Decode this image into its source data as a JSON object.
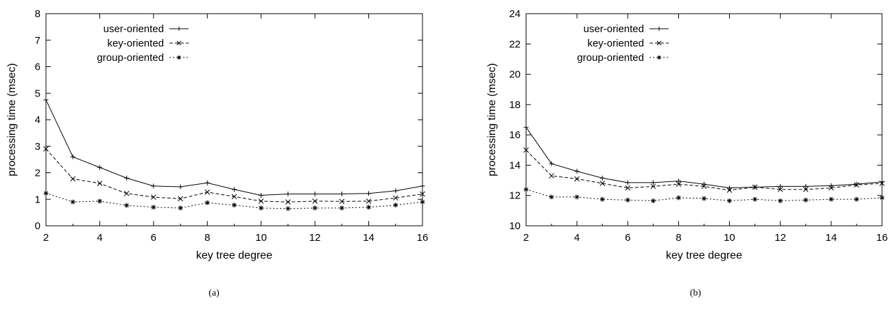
{
  "chart_data": [
    {
      "type": "line",
      "caption": "(a)",
      "xlabel": "key tree degree",
      "ylabel": "processing time (msec)",
      "xlim": [
        2,
        16
      ],
      "ylim": [
        0,
        8
      ],
      "xticks": [
        2,
        4,
        6,
        8,
        10,
        12,
        14,
        16
      ],
      "yticks": [
        0,
        1,
        2,
        3,
        4,
        5,
        6,
        7,
        8
      ],
      "legend_position": "top-left",
      "x": [
        2,
        3,
        4,
        5,
        6,
        7,
        8,
        9,
        10,
        11,
        12,
        13,
        14,
        15,
        16
      ],
      "series": [
        {
          "name": "user-oriented",
          "style": "solid",
          "marker": "+",
          "values": [
            4.75,
            2.6,
            2.2,
            1.8,
            1.5,
            1.47,
            1.62,
            1.37,
            1.15,
            1.2,
            1.2,
            1.2,
            1.22,
            1.32,
            1.5
          ]
        },
        {
          "name": "key-oriented",
          "style": "dashed",
          "marker": "x",
          "values": [
            2.9,
            1.77,
            1.6,
            1.22,
            1.08,
            1.02,
            1.27,
            1.1,
            0.93,
            0.9,
            0.93,
            0.92,
            0.93,
            1.05,
            1.2
          ]
        },
        {
          "name": "group-oriented",
          "style": "dotted",
          "marker": "*",
          "values": [
            1.23,
            0.9,
            0.93,
            0.77,
            0.7,
            0.67,
            0.87,
            0.78,
            0.67,
            0.65,
            0.67,
            0.67,
            0.7,
            0.78,
            0.9
          ]
        }
      ]
    },
    {
      "type": "line",
      "caption": "(b)",
      "xlabel": "key tree degree",
      "ylabel": "processing time (msec)",
      "xlim": [
        2,
        16
      ],
      "ylim": [
        10,
        24
      ],
      "xticks": [
        2,
        4,
        6,
        8,
        10,
        12,
        14,
        16
      ],
      "yticks": [
        10,
        12,
        14,
        16,
        18,
        20,
        22,
        24
      ],
      "legend_position": "top-left",
      "x": [
        2,
        3,
        4,
        5,
        6,
        7,
        8,
        9,
        10,
        11,
        12,
        13,
        14,
        15,
        16
      ],
      "series": [
        {
          "name": "user-oriented",
          "style": "solid",
          "marker": "+",
          "values": [
            16.5,
            14.1,
            13.6,
            13.15,
            12.85,
            12.85,
            12.95,
            12.75,
            12.5,
            12.55,
            12.6,
            12.6,
            12.65,
            12.75,
            12.9
          ]
        },
        {
          "name": "key-oriented",
          "style": "dashed",
          "marker": "x",
          "values": [
            15.0,
            13.3,
            13.1,
            12.8,
            12.5,
            12.6,
            12.75,
            12.6,
            12.35,
            12.55,
            12.4,
            12.4,
            12.5,
            12.7,
            12.8
          ]
        },
        {
          "name": "group-oriented",
          "style": "dotted",
          "marker": "*",
          "values": [
            12.4,
            11.9,
            11.9,
            11.75,
            11.7,
            11.65,
            11.85,
            11.8,
            11.65,
            11.75,
            11.65,
            11.7,
            11.75,
            11.75,
            11.85
          ]
        }
      ]
    }
  ]
}
